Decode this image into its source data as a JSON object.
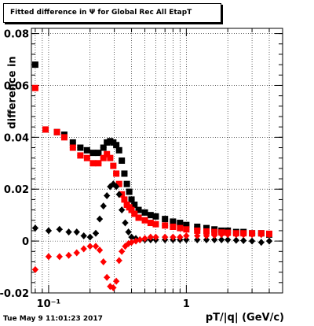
{
  "header": {
    "title": "Fitted difference in Ψ  for Global Rec All EtapT"
  },
  "footer": {
    "timestamp": "Tue May  9 11:01:23 2017"
  },
  "chart_data": {
    "type": "scatter",
    "title": "Fitted difference in Ψ  for Global Rec All EtapT",
    "xlabel": "pT/|q| (GeV/c)",
    "ylabel": "difference in",
    "xscale": "log",
    "xlim": [
      0.075,
      5.0
    ],
    "ylim": [
      -0.02,
      0.082
    ],
    "x_tick_labels": [
      "10⁻¹",
      "1"
    ],
    "y_tick_labels": [
      "-0.02",
      "0",
      "0.02",
      "0.04",
      "0.06",
      "0.08"
    ],
    "grid": true,
    "colors": {
      "black": "#000000",
      "red": "#ff0000"
    },
    "series": [
      {
        "marker": "square",
        "color": "#000000",
        "x": [
          0.08,
          0.095,
          0.115,
          0.13,
          0.15,
          0.17,
          0.19,
          0.21,
          0.23,
          0.25,
          0.265,
          0.28,
          0.295,
          0.31,
          0.325,
          0.34,
          0.355,
          0.37,
          0.385,
          0.4,
          0.42,
          0.45,
          0.5,
          0.55,
          0.6,
          0.7,
          0.8,
          0.9,
          1.0,
          1.2,
          1.4,
          1.6,
          1.8,
          2.0,
          2.3,
          2.6,
          3.0,
          3.5,
          4.0
        ],
        "y": [
          0.068,
          0.043,
          0.042,
          0.041,
          0.038,
          0.036,
          0.035,
          0.034,
          0.034,
          0.036,
          0.038,
          0.0385,
          0.038,
          0.037,
          0.035,
          0.031,
          0.026,
          0.022,
          0.019,
          0.016,
          0.014,
          0.012,
          0.011,
          0.01,
          0.0095,
          0.0085,
          0.0075,
          0.007,
          0.0062,
          0.0055,
          0.005,
          0.0045,
          0.004,
          0.004,
          0.0035,
          0.0035,
          0.003,
          0.003,
          0.0025
        ]
      },
      {
        "marker": "square",
        "color": "#ff0000",
        "x": [
          0.08,
          0.095,
          0.115,
          0.13,
          0.15,
          0.17,
          0.19,
          0.21,
          0.23,
          0.25,
          0.265,
          0.28,
          0.295,
          0.31,
          0.325,
          0.34,
          0.355,
          0.37,
          0.385,
          0.4,
          0.42,
          0.45,
          0.5,
          0.55,
          0.6,
          0.7,
          0.8,
          0.9,
          1.0,
          1.2,
          1.4,
          1.6,
          1.8,
          2.0,
          2.3,
          2.6,
          3.0,
          3.5,
          4.0
        ],
        "y": [
          0.059,
          0.043,
          0.042,
          0.04,
          0.036,
          0.033,
          0.032,
          0.03,
          0.03,
          0.032,
          0.0335,
          0.032,
          0.029,
          0.026,
          0.022,
          0.018,
          0.016,
          0.014,
          0.013,
          0.012,
          0.0105,
          0.009,
          0.008,
          0.007,
          0.0065,
          0.006,
          0.0055,
          0.005,
          0.0045,
          0.004,
          0.0037,
          0.0035,
          0.0033,
          0.0032,
          0.003,
          0.003,
          0.003,
          0.003,
          0.0028
        ]
      },
      {
        "marker": "diamond",
        "color": "#000000",
        "x": [
          0.08,
          0.1,
          0.12,
          0.14,
          0.16,
          0.18,
          0.2,
          0.22,
          0.235,
          0.25,
          0.265,
          0.28,
          0.295,
          0.31,
          0.325,
          0.34,
          0.36,
          0.38,
          0.4,
          0.43,
          0.46,
          0.5,
          0.55,
          0.6,
          0.7,
          0.8,
          0.9,
          1.0,
          1.2,
          1.4,
          1.6,
          1.8,
          2.0,
          2.3,
          2.6,
          3.0,
          3.5,
          4.0
        ],
        "y": [
          0.005,
          0.004,
          0.0045,
          0.0035,
          0.0035,
          0.002,
          0.0015,
          0.003,
          0.0085,
          0.0135,
          0.0175,
          0.021,
          0.022,
          0.021,
          0.018,
          0.012,
          0.007,
          0.0035,
          0.0015,
          0.001,
          0.0005,
          0.0005,
          0.0005,
          0.0005,
          0.0005,
          0.0005,
          0.0005,
          0.0005,
          0.0005,
          0.0005,
          0.0005,
          0.0005,
          0.0005,
          0.0003,
          0.0002,
          0.0,
          -0.0005,
          0.0
        ]
      },
      {
        "marker": "diamond",
        "color": "#ff0000",
        "x": [
          0.08,
          0.1,
          0.12,
          0.14,
          0.16,
          0.18,
          0.2,
          0.22,
          0.235,
          0.25,
          0.265,
          0.28,
          0.295,
          0.31,
          0.325,
          0.34,
          0.36,
          0.38,
          0.4,
          0.43,
          0.46,
          0.5,
          0.55,
          0.6,
          0.7,
          0.8,
          0.9,
          1.0,
          1.2,
          1.4,
          1.6,
          1.8,
          2.0,
          2.3,
          2.6,
          3.0,
          3.5,
          4.0
        ],
        "y": [
          -0.011,
          -0.006,
          -0.006,
          -0.0055,
          -0.0045,
          -0.003,
          -0.002,
          -0.002,
          -0.0035,
          -0.008,
          -0.014,
          -0.0175,
          -0.018,
          -0.0155,
          -0.0075,
          -0.004,
          -0.002,
          -0.001,
          -0.0005,
          0.0,
          0.0005,
          0.001,
          0.0015,
          0.0015,
          0.0015,
          0.0015,
          0.0015,
          0.002,
          0.002,
          0.002,
          0.0022,
          0.0025,
          0.0025,
          0.0025,
          0.0025,
          0.0025,
          0.0025,
          0.0025
        ]
      }
    ]
  }
}
